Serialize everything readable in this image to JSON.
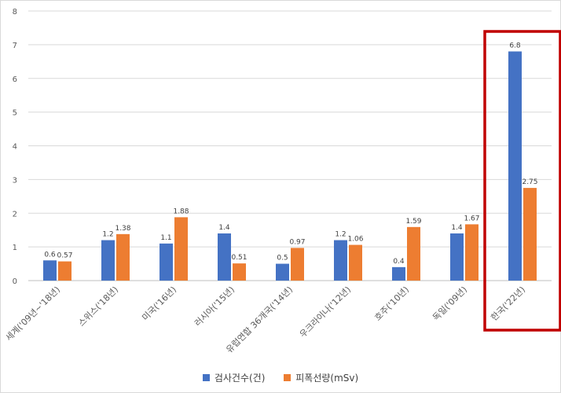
{
  "chart_data": {
    "type": "bar",
    "categories": [
      "세계('09년~'18년)",
      "스위스('18년)",
      "미국('16년)",
      "러시아('15년)",
      "유럽연합 36개국('14년)",
      "우크라이나('12년)",
      "호주('10년)",
      "독일('09년)",
      "한국('22년)"
    ],
    "series": [
      {
        "name": "검사건수(건)",
        "values": [
          0.6,
          1.2,
          1.1,
          1.4,
          0.5,
          1.2,
          0.4,
          1.4,
          6.8
        ],
        "labels": [
          "0.6",
          "1.2",
          "1.1",
          "1.4",
          "0.5",
          "1.2",
          "0.4",
          "1.4",
          "6.8"
        ],
        "color": "#4472c4"
      },
      {
        "name": "피폭선량(mSv)",
        "values": [
          0.57,
          1.38,
          1.88,
          0.51,
          0.97,
          1.06,
          1.59,
          1.67,
          2.75
        ],
        "labels": [
          "0.57",
          "1.38",
          "1.88",
          "0.51",
          "0.97",
          "1.06",
          "1.59",
          "1.67",
          "2.75"
        ],
        "color": "#ed7d31"
      }
    ],
    "yticks": [
      "0",
      "1",
      "2",
      "3",
      "4",
      "5",
      "6",
      "7",
      "8"
    ],
    "ylim": [
      0,
      8
    ],
    "grid": true,
    "legend_position": "bottom",
    "highlight": {
      "category": "한국('22년)",
      "color": "#c00000"
    }
  }
}
